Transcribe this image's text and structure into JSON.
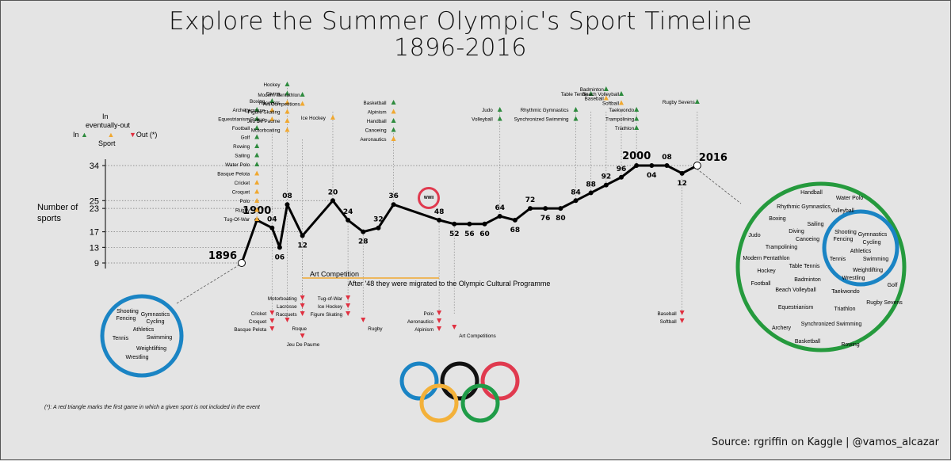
{
  "title_line1": "Explore the Summer Olympic's Sport Timeline",
  "title_line2": "1896-2016",
  "source": "Source: rgriffin on Kaggle | @vamos_alcazar",
  "footnote": "(*): A red triangle marks the first game in which a given sport is not included in the event",
  "ylabel_line1": "Number of",
  "ylabel_line2": "sports",
  "legend": {
    "in_top": "In",
    "eventually_out": "eventually-out",
    "in": "In",
    "out": "Out (*)",
    "sport": "Sport"
  },
  "art": {
    "label": "Art Competition",
    "note": "After '48 they were migrated to the Olympic Cultural Programme"
  },
  "wwii_label": "WWII",
  "colors": {
    "in": "#2e8b3e",
    "eventually_out": "#f0a830",
    "out": "#e03040",
    "blue_ring": "#1a84c4",
    "green_ring": "#259a3d",
    "line": "#000000"
  },
  "chart_data": {
    "type": "line",
    "yticks": [
      9,
      13,
      17,
      23,
      25,
      34
    ],
    "points": [
      {
        "year": 1896,
        "label": "1896",
        "value": 9
      },
      {
        "year": 1900,
        "label": "1900",
        "value": 20
      },
      {
        "year": 1904,
        "label": "04",
        "value": 18
      },
      {
        "year": 1906,
        "label": "06",
        "value": 13
      },
      {
        "year": 1908,
        "label": "08",
        "value": 24
      },
      {
        "year": 1912,
        "label": "12",
        "value": 16
      },
      {
        "year": 1920,
        "label": "20",
        "value": 25
      },
      {
        "year": 1924,
        "label": "24",
        "value": 20
      },
      {
        "year": 1928,
        "label": "28",
        "value": 17
      },
      {
        "year": 1932,
        "label": "32",
        "value": 18
      },
      {
        "year": 1936,
        "label": "36",
        "value": 24
      },
      {
        "year": 1948,
        "label": "48",
        "value": 20
      },
      {
        "year": 1952,
        "label": "52",
        "value": 19
      },
      {
        "year": 1956,
        "label": "56",
        "value": 19
      },
      {
        "year": 1960,
        "label": "60",
        "value": 19
      },
      {
        "year": 1964,
        "label": "64",
        "value": 21
      },
      {
        "year": 1968,
        "label": "68",
        "value": 20
      },
      {
        "year": 1972,
        "label": "72",
        "value": 23
      },
      {
        "year": 1976,
        "label": "76",
        "value": 23
      },
      {
        "year": 1980,
        "label": "80",
        "value": 23
      },
      {
        "year": 1984,
        "label": "84",
        "value": 25
      },
      {
        "year": 1988,
        "label": "88",
        "value": 27
      },
      {
        "year": 1992,
        "label": "92",
        "value": 29
      },
      {
        "year": 1996,
        "label": "96",
        "value": 31
      },
      {
        "year": 2000,
        "label": "2000",
        "value": 34
      },
      {
        "year": 2004,
        "label": "04",
        "value": 34
      },
      {
        "year": 2008,
        "label": "08",
        "value": 34
      },
      {
        "year": 2012,
        "label": "12",
        "value": 32
      },
      {
        "year": 2016,
        "label": "2016",
        "value": 34
      }
    ],
    "added": [
      {
        "year": 1900,
        "sports": [
          {
            "name": "Archery",
            "status": "in"
          },
          {
            "name": "Equestrianism",
            "status": "in"
          },
          {
            "name": "Football",
            "status": "in"
          },
          {
            "name": "Golf",
            "status": "in"
          },
          {
            "name": "Rowing",
            "status": "in"
          },
          {
            "name": "Sailing",
            "status": "in"
          },
          {
            "name": "Water Polo",
            "status": "in"
          },
          {
            "name": "Basque Pelota",
            "status": "out"
          },
          {
            "name": "Cricket",
            "status": "out"
          },
          {
            "name": "Croquet",
            "status": "out"
          },
          {
            "name": "Polo",
            "status": "out"
          },
          {
            "name": "Rugby",
            "status": "out"
          },
          {
            "name": "Tug-Of-War",
            "status": "out"
          }
        ]
      },
      {
        "year": 1904,
        "sports": [
          {
            "name": "Boxing",
            "status": "in"
          },
          {
            "name": "Lacrosse",
            "status": "out"
          },
          {
            "name": "Roque",
            "status": "out"
          }
        ]
      },
      {
        "year": 1908,
        "sports": [
          {
            "name": "Hockey",
            "status": "in"
          },
          {
            "name": "Diving",
            "status": "in"
          },
          {
            "name": "Racquets",
            "status": "out"
          },
          {
            "name": "Figure Skating",
            "status": "out"
          },
          {
            "name": "Jeu De Paume",
            "status": "out"
          },
          {
            "name": "Motorboating",
            "status": "out"
          }
        ]
      },
      {
        "year": 1912,
        "sports": [
          {
            "name": "Modern Pentathlon",
            "status": "in"
          },
          {
            "name": "Art Competitions",
            "status": "out"
          }
        ]
      },
      {
        "year": 1920,
        "sports": [
          {
            "name": "Ice Hockey",
            "status": "out"
          }
        ]
      },
      {
        "year": 1936,
        "sports": [
          {
            "name": "Basketball",
            "status": "in"
          },
          {
            "name": "Alpinism",
            "status": "out"
          },
          {
            "name": "Handball",
            "status": "in"
          },
          {
            "name": "Canoeing",
            "status": "in"
          },
          {
            "name": "Aeronautics",
            "status": "out"
          }
        ]
      },
      {
        "year": 1964,
        "sports": [
          {
            "name": "Judo",
            "status": "in"
          },
          {
            "name": "Volleyball",
            "status": "in"
          }
        ]
      },
      {
        "year": 1984,
        "sports": [
          {
            "name": "Rhythmic Gymnastics",
            "status": "in"
          },
          {
            "name": "Synchronized Swimming",
            "status": "in"
          }
        ]
      },
      {
        "year": 1988,
        "sports": [
          {
            "name": "Table Tennis",
            "status": "in"
          }
        ]
      },
      {
        "year": 1992,
        "sports": [
          {
            "name": "Badminton",
            "status": "in"
          },
          {
            "name": "Baseball",
            "status": "out"
          }
        ]
      },
      {
        "year": 1996,
        "sports": [
          {
            "name": "Beach Volleyball",
            "status": "in"
          },
          {
            "name": "Softball",
            "status": "out"
          }
        ]
      },
      {
        "year": 2000,
        "sports": [
          {
            "name": "Taekwondo",
            "status": "in"
          },
          {
            "name": "Trampolining",
            "status": "in"
          },
          {
            "name": "Triathlon",
            "status": "in"
          }
        ]
      },
      {
        "year": 2016,
        "sports": [
          {
            "name": "Rugby Sevens",
            "status": "in"
          }
        ]
      }
    ],
    "removed": [
      {
        "year": 1904,
        "sports": [
          "Cricket",
          "Croquet",
          "Basque Pelota"
        ]
      },
      {
        "year": 1908,
        "sports": [
          "Roque"
        ]
      },
      {
        "year": 1912,
        "sports": [
          "Jeu De Paume"
        ]
      },
      {
        "year": 1912,
        "sports": [
          "Motorboating",
          "Lacrosse",
          "Racquets"
        ]
      },
      {
        "year": 1924,
        "sports": [
          "Tug-of-War",
          "Ice Hockey",
          "Figure Skating"
        ]
      },
      {
        "year": 1928,
        "sports": [
          "Rugby"
        ]
      },
      {
        "year": 1948,
        "sports": [
          "Polo",
          "Aeronautics",
          "Alpinism"
        ]
      },
      {
        "year": 1952,
        "sports": [
          "Art Competitions"
        ]
      },
      {
        "year": 2012,
        "sports": [
          "Baseball",
          "Softball"
        ]
      }
    ],
    "start_circle": [
      "Shooting",
      "Gymnastics",
      "Fencing",
      "Cycling",
      "Athletics",
      "Tennis",
      "Swimming",
      "Weightlifting",
      "Wrestling"
    ],
    "end_outer": [
      "Handball",
      "Water Polo",
      "Rhythmic Gymnastics",
      "Volleyball",
      "Boxing",
      "Sailing",
      "Judo",
      "Diving",
      "Canoeing",
      "Trampolining",
      "Modern Pentathlon",
      "Table Tennis",
      "Hockey",
      "Badminton",
      "Football",
      "Beach Volleyball",
      "Taekwondo",
      "Golf",
      "Rugby Sevens",
      "Equestrianism",
      "Triathlon",
      "Synchronized Swimming",
      "Archery",
      "Basketball",
      "Rowing"
    ],
    "end_inner": [
      "Shooting",
      "Gymnastics",
      "Fencing",
      "Cycling",
      "Athletics",
      "Tennis",
      "Swimming",
      "Weightlifting",
      "Wrestling"
    ]
  }
}
